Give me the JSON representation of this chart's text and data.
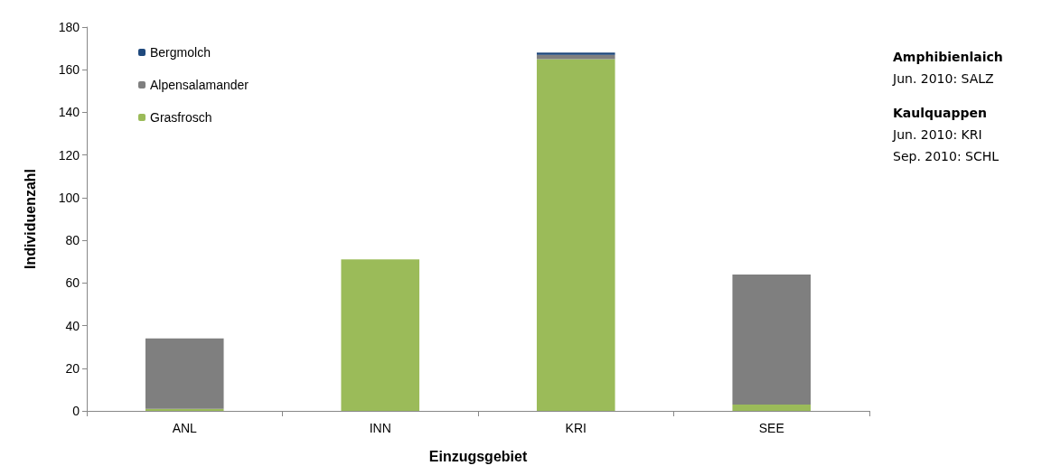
{
  "chart_data": {
    "type": "bar",
    "stacked": true,
    "xlabel": "Einzugsgebiet",
    "ylabel": "Individuenzahl",
    "categories": [
      "ANL",
      "INN",
      "KRI",
      "SEE"
    ],
    "series": [
      {
        "name": "Grasfrosch",
        "color": "#9bbb59",
        "values": [
          1,
          71,
          165,
          3
        ]
      },
      {
        "name": "Alpensalamander",
        "color": "#7f7f7f",
        "values": [
          33,
          0,
          2,
          61
        ]
      },
      {
        "name": "Bergmolch",
        "color": "#1f497d",
        "values": [
          0,
          0,
          1,
          0
        ]
      }
    ],
    "ylim": [
      0,
      180
    ],
    "yticks": [
      0,
      20,
      40,
      60,
      80,
      100,
      120,
      140,
      160,
      180
    ],
    "grid": false,
    "legend": "top left",
    "annotations": [
      "Amphibienlaich",
      "Jun. 2010: SALZ",
      "Kaulquappen",
      "Jun. 2010: KRI",
      "Sep. 2010: SCHL"
    ]
  }
}
